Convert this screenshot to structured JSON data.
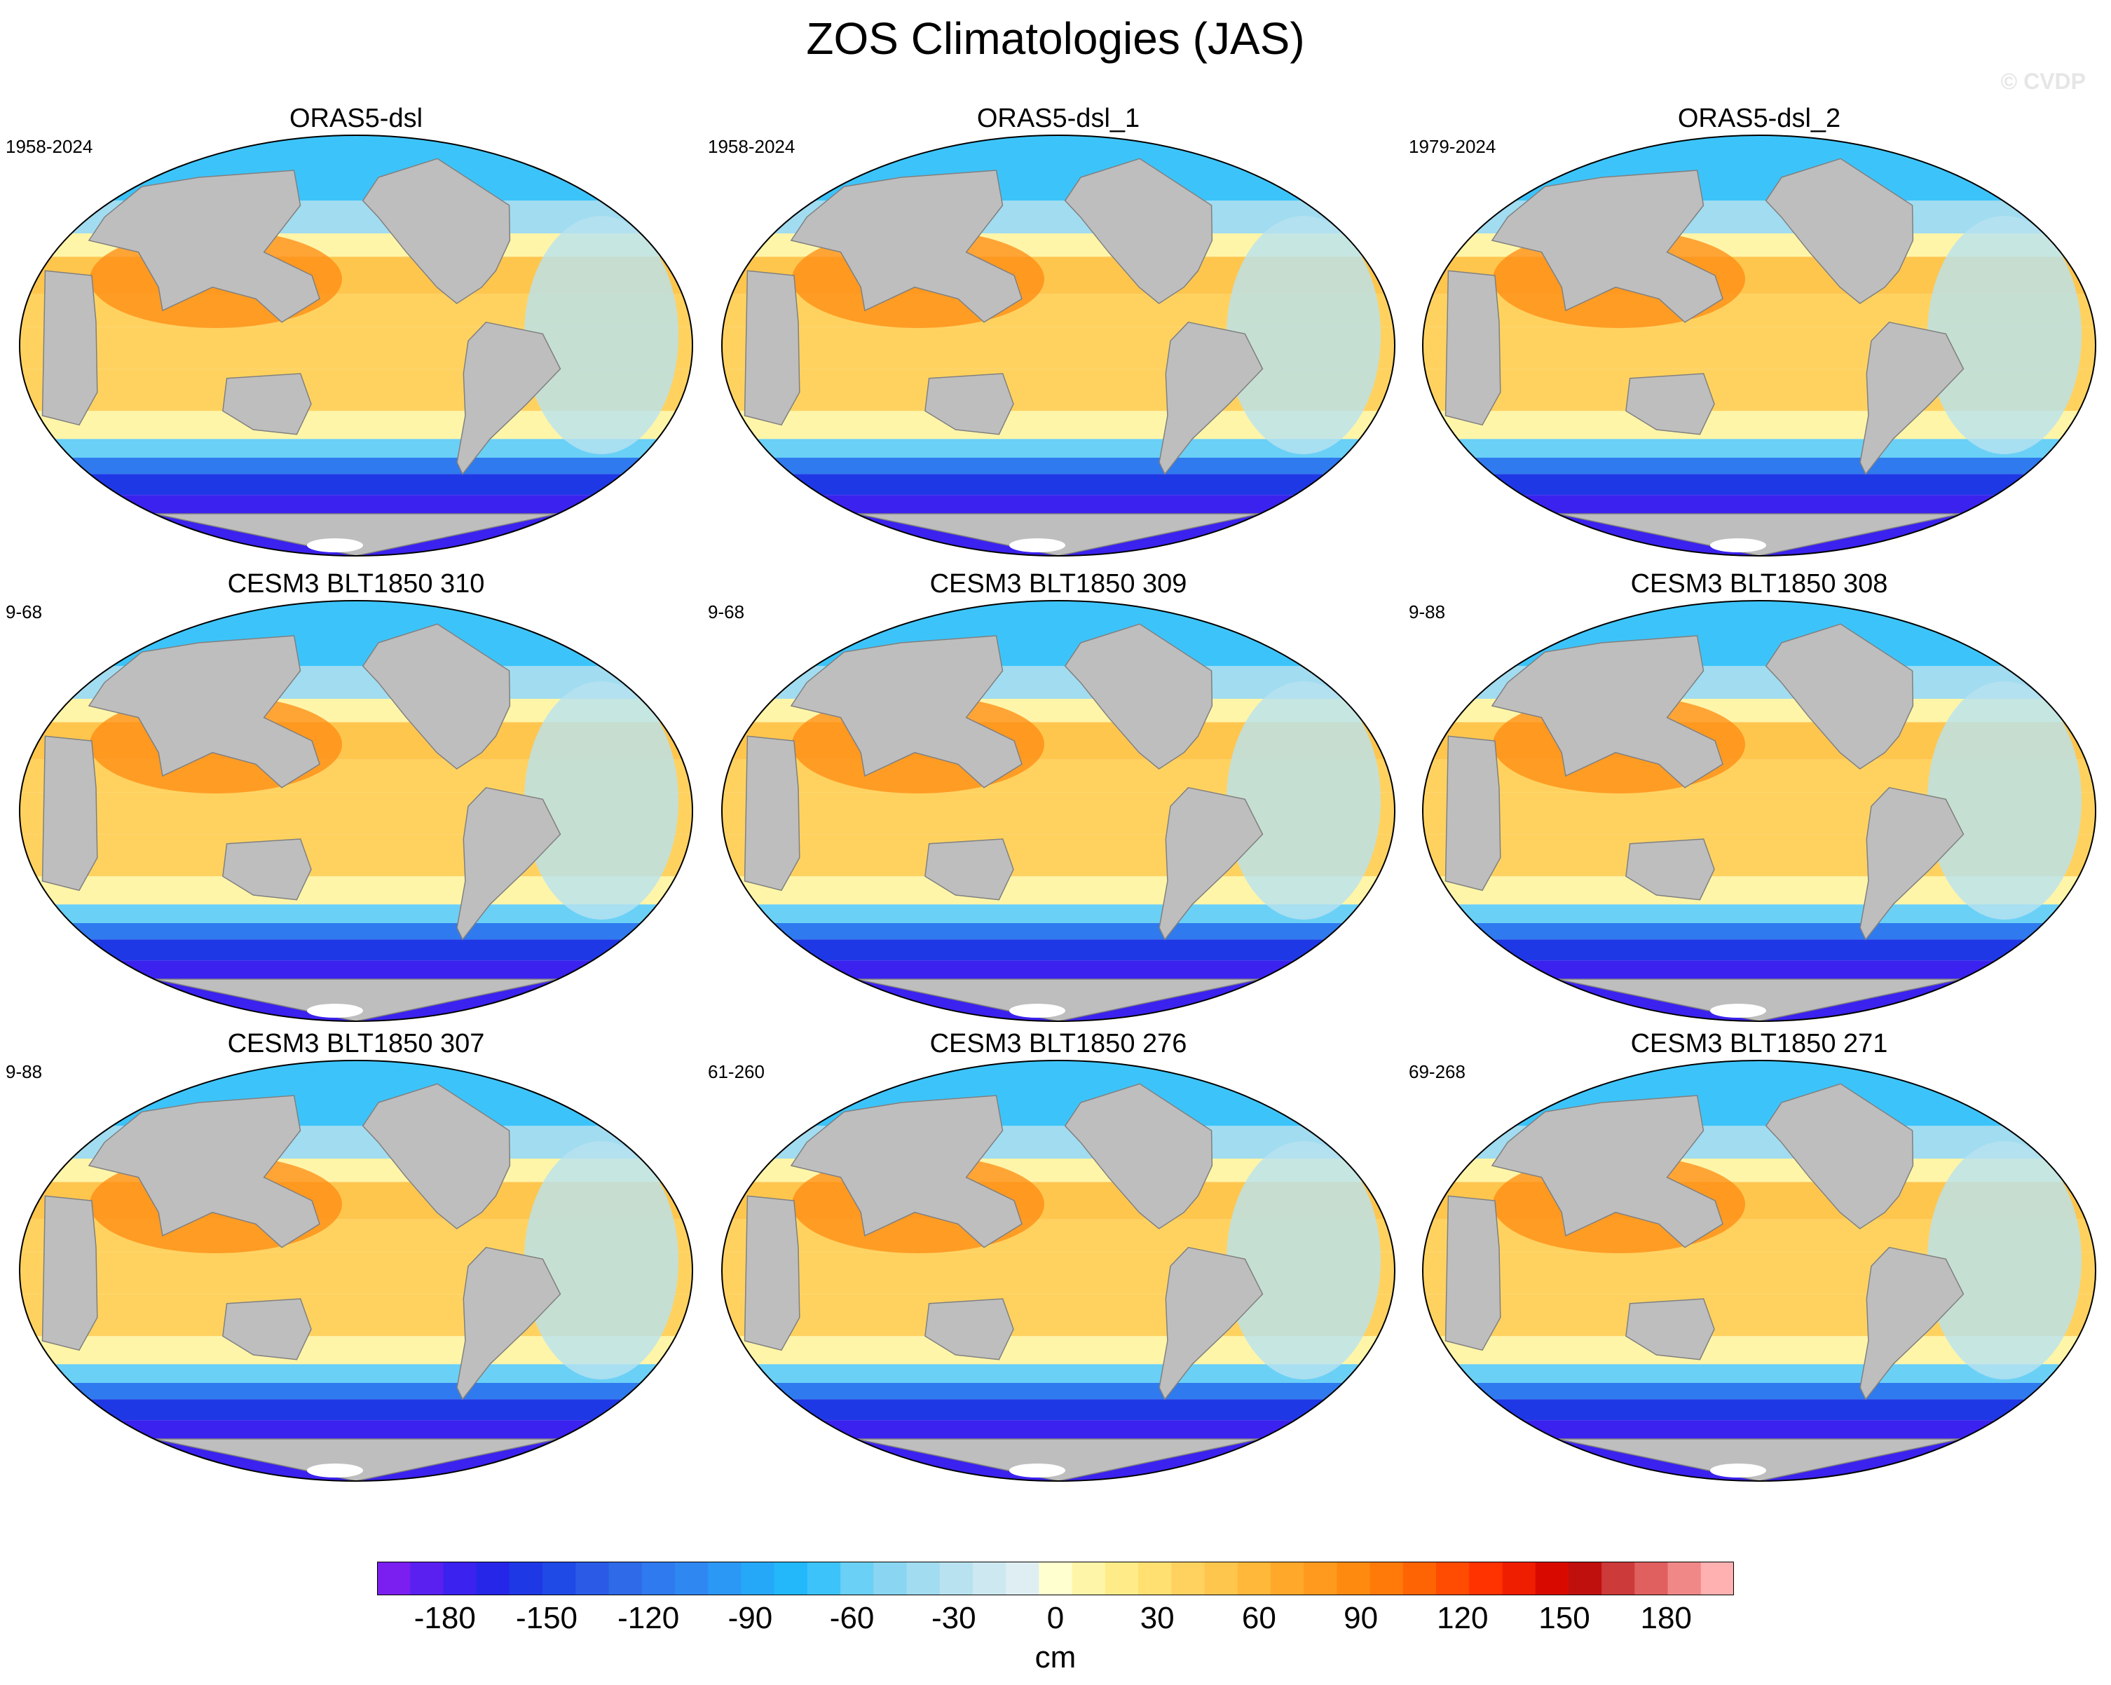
{
  "figure": {
    "title": "ZOS Climatologies (JAS)",
    "watermark": "© CVDP"
  },
  "panels": [
    {
      "title": "ORAS5-dsl",
      "years": "1958-2024"
    },
    {
      "title": "ORAS5-dsl_1",
      "years": "1958-2024"
    },
    {
      "title": "ORAS5-dsl_2",
      "years": "1979-2024"
    },
    {
      "title": "CESM3 BLT1850 310",
      "years": "9-68"
    },
    {
      "title": "CESM3 BLT1850 309",
      "years": "9-68"
    },
    {
      "title": "CESM3 BLT1850 308",
      "years": "9-88"
    },
    {
      "title": "CESM3 BLT1850 307",
      "years": "9-88"
    },
    {
      "title": "CESM3 BLT1850 276",
      "years": "61-260"
    },
    {
      "title": "CESM3 BLT1850 271",
      "years": "69-268"
    }
  ],
  "colorbar": {
    "unit": "cm",
    "min": -200,
    "max": 200,
    "step": 10,
    "ticks": [
      -180,
      -150,
      -120,
      -90,
      -60,
      -30,
      0,
      30,
      60,
      90,
      120,
      150,
      180
    ],
    "tick_labels": [
      "-180",
      "-150",
      "-120",
      "-90",
      "-60",
      "-30",
      "0",
      "30",
      "60",
      "90",
      "120",
      "150",
      "180"
    ],
    "colors": [
      "#7a1ff0",
      "#5a20f0",
      "#3b22ee",
      "#2626e8",
      "#1f38e6",
      "#1f4ae6",
      "#2a5ae6",
      "#2f6ae8",
      "#2f7aee",
      "#2f88f2",
      "#2c98f6",
      "#26a8f8",
      "#22b8fa",
      "#3cc4fa",
      "#6ad0f6",
      "#8ad6f2",
      "#a2dcf0",
      "#b8e2f0",
      "#cde8f0",
      "#dfeef2",
      "#ffffd0",
      "#fff5a8",
      "#ffec88",
      "#ffe070",
      "#ffd260",
      "#ffc64e",
      "#ffb83a",
      "#ffa82a",
      "#ff9a1e",
      "#ff8a10",
      "#ff7a08",
      "#ff6404",
      "#ff4c02",
      "#ff3300",
      "#f01e00",
      "#d80a00",
      "#c0100e",
      "#cc3a3a",
      "#e06060",
      "#f08888",
      "#ffb0b0"
    ],
    "land_color": "#bebebe",
    "antarctic_color": "#ffffff"
  }
}
